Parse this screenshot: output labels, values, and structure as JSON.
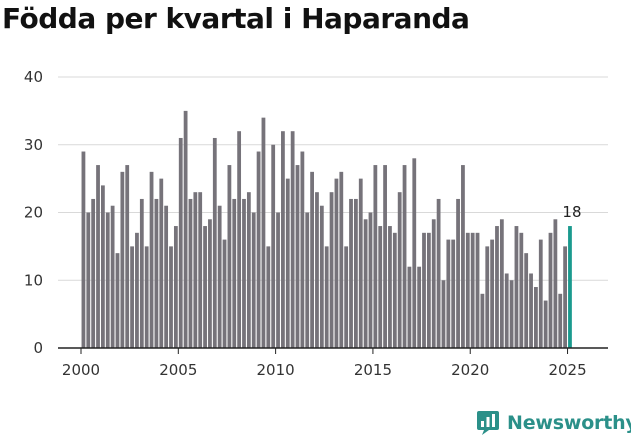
{
  "chart_data": {
    "type": "bar",
    "title": "Födda per kvartal i Haparanda",
    "xlabel": "",
    "ylabel": "",
    "ylim": [
      0,
      40
    ],
    "yticks": [
      0,
      10,
      20,
      30,
      40
    ],
    "xticks": [
      2000,
      2005,
      2010,
      2015,
      2020,
      2025
    ],
    "x_range": [
      2000.0,
      2026.0
    ],
    "grid": true,
    "first_quarter": "2000 Q1",
    "values": [
      29,
      20,
      22,
      27,
      24,
      20,
      21,
      14,
      26,
      27,
      15,
      17,
      22,
      15,
      26,
      22,
      25,
      21,
      15,
      18,
      31,
      35,
      22,
      23,
      23,
      18,
      19,
      31,
      21,
      16,
      27,
      22,
      32,
      22,
      23,
      20,
      29,
      34,
      15,
      30,
      20,
      32,
      25,
      32,
      27,
      29,
      20,
      26,
      23,
      21,
      15,
      23,
      25,
      26,
      15,
      22,
      22,
      25,
      19,
      20,
      27,
      18,
      27,
      18,
      17,
      23,
      27,
      12,
      28,
      12,
      17,
      17,
      19,
      22,
      10,
      16,
      16,
      22,
      27,
      17,
      17,
      17,
      8,
      15,
      16,
      18,
      19,
      11,
      10,
      18,
      17,
      14,
      11,
      9,
      16,
      7,
      17,
      19,
      8,
      15,
      18
    ],
    "highlight": {
      "index": 100,
      "label": "18",
      "color": "#1a9a8e"
    },
    "bar_color": "#76737a"
  },
  "brand": {
    "name": "Newsworthy",
    "color": "#2b9089"
  }
}
